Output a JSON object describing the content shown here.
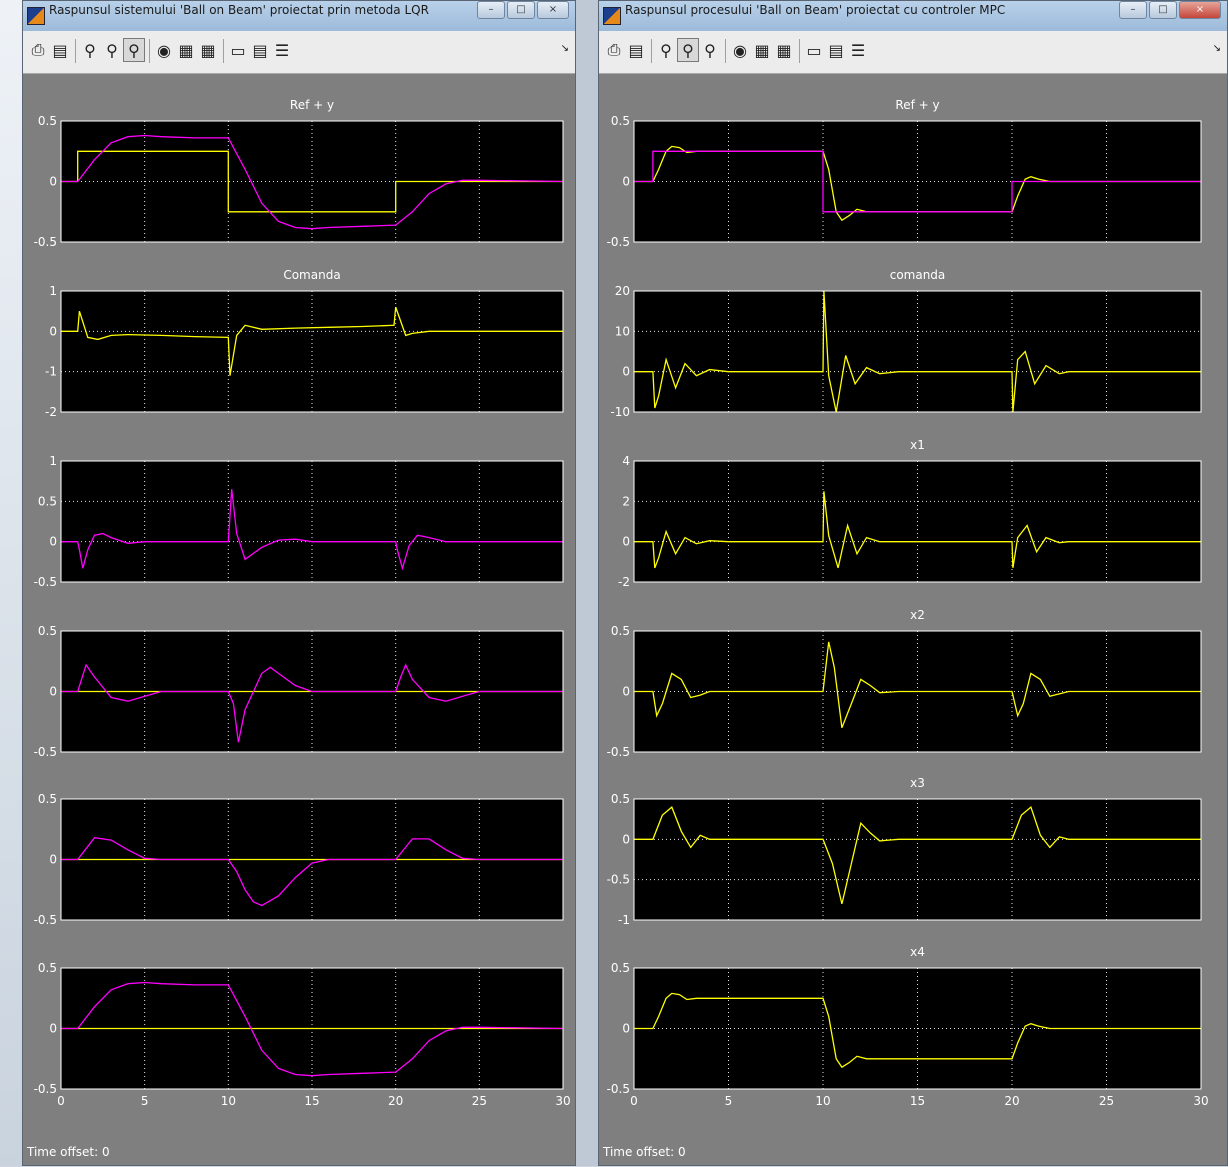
{
  "windows": [
    {
      "id": "lqr",
      "title": "Raspunsul sistemului 'Ball on Beam' proiectat prin metoda LQR",
      "time_offset_label": "Time offset:",
      "time_offset_value": "0",
      "toolbar_icons": [
        "print-icon",
        "params-icon",
        "zoom-in-icon",
        "zoom-x-icon",
        "zoom-y-icon",
        "binoculars-icon",
        "save-axes-icon",
        "restore-axes-icon",
        "floating-scope-icon",
        "lock-icon",
        "select-signals-icon"
      ],
      "xticks": [
        "0",
        "5",
        "10",
        "15",
        "20",
        "25",
        "30"
      ],
      "panels": [
        {
          "title": "Ref + y",
          "yticks": [
            "0.5",
            "0",
            "-0.5"
          ],
          "ylim": [
            -0.5,
            0.5
          ]
        },
        {
          "title": "Comanda",
          "yticks": [
            "1",
            "0",
            "-1",
            "-2"
          ],
          "ylim": [
            -2,
            1
          ]
        },
        {
          "title": "",
          "yticks": [
            "1",
            "0.5",
            "0",
            "-0.5"
          ],
          "ylim": [
            -0.5,
            1
          ]
        },
        {
          "title": "",
          "yticks": [
            "0.5",
            "0",
            "-0.5"
          ],
          "ylim": [
            -0.5,
            0.5
          ]
        },
        {
          "title": "",
          "yticks": [
            "0.5",
            "0",
            "-0.5"
          ],
          "ylim": [
            -0.5,
            0.5
          ]
        },
        {
          "title": "",
          "yticks": [
            "0.5",
            "0",
            "-0.5"
          ],
          "ylim": [
            -0.5,
            0.5
          ]
        }
      ]
    },
    {
      "id": "mpc",
      "title": "Raspunsul procesului 'Ball on Beam' proiectat cu controler MPC",
      "time_offset_label": "Time offset:",
      "time_offset_value": "0",
      "toolbar_icons": [
        "print-icon",
        "params-icon",
        "zoom-in-icon",
        "zoom-x-icon",
        "zoom-y-icon",
        "binoculars-icon",
        "save-axes-icon",
        "restore-axes-icon",
        "floating-scope-icon",
        "lock-icon",
        "select-signals-icon"
      ],
      "xticks": [
        "0",
        "5",
        "10",
        "15",
        "20",
        "25",
        "30"
      ],
      "panels": [
        {
          "title": "Ref + y",
          "yticks": [
            "0.5",
            "0",
            "-0.5"
          ],
          "ylim": [
            -0.5,
            0.5
          ]
        },
        {
          "title": "comanda",
          "yticks": [
            "20",
            "10",
            "0",
            "-10"
          ],
          "ylim": [
            -10,
            20
          ]
        },
        {
          "title": "x1",
          "yticks": [
            "4",
            "2",
            "0",
            "-2"
          ],
          "ylim": [
            -2,
            4
          ]
        },
        {
          "title": "x2",
          "yticks": [
            "0.5",
            "0",
            "-0.5"
          ],
          "ylim": [
            -0.5,
            0.5
          ]
        },
        {
          "title": "x3",
          "yticks": [
            "0.5",
            "0",
            "-0.5",
            "-1"
          ],
          "ylim": [
            -1,
            0.5
          ]
        },
        {
          "title": "x4",
          "yticks": [
            "0.5",
            "0",
            "-0.5"
          ],
          "ylim": [
            -0.5,
            0.5
          ]
        }
      ]
    }
  ],
  "colors": {
    "yellow": "#ffff00",
    "magenta": "#ff00ff",
    "orange": "#ff9a5a",
    "axes_bg": "#000000",
    "figure_bg": "#7f7f7f"
  },
  "chart_data": [
    {
      "type": "line",
      "window": "lqr",
      "title": "Ref + y",
      "xlim": [
        0,
        30
      ],
      "ylim": [
        -0.5,
        0.5
      ],
      "grid": true,
      "series": [
        {
          "color": "yellow",
          "x": [
            0,
            1,
            1,
            10,
            10,
            20,
            20,
            30
          ],
          "y": [
            0,
            0,
            0.25,
            0.25,
            -0.25,
            -0.25,
            0,
            0
          ]
        },
        {
          "color": "magenta",
          "x": [
            0,
            1,
            2,
            3,
            4,
            5,
            6,
            8,
            10,
            11,
            12,
            13,
            14,
            15,
            16,
            18,
            20,
            21,
            22,
            23,
            24,
            25,
            30
          ],
          "y": [
            0,
            0,
            0.18,
            0.32,
            0.37,
            0.38,
            0.37,
            0.36,
            0.36,
            0.1,
            -0.18,
            -0.33,
            -0.38,
            -0.39,
            -0.38,
            -0.37,
            -0.36,
            -0.25,
            -0.1,
            -0.02,
            0.01,
            0.01,
            0
          ]
        }
      ]
    },
    {
      "type": "line",
      "window": "lqr",
      "title": "Comanda",
      "xlim": [
        0,
        30
      ],
      "ylim": [
        -2,
        1
      ],
      "grid": true,
      "series": [
        {
          "color": "yellow",
          "x": [
            0,
            1,
            1.1,
            1.6,
            2.2,
            3,
            4,
            6,
            8,
            10,
            10.1,
            10.5,
            11,
            12,
            14,
            16,
            18,
            19.9,
            20,
            20.6,
            21,
            22,
            25,
            30
          ],
          "y": [
            0,
            0,
            0.5,
            -0.15,
            -0.2,
            -0.1,
            -0.08,
            -0.1,
            -0.13,
            -0.15,
            -1.1,
            -0.1,
            0.15,
            0.05,
            0.08,
            0.1,
            0.12,
            0.15,
            0.6,
            -0.1,
            -0.05,
            0,
            0,
            0
          ]
        }
      ]
    },
    {
      "type": "line",
      "window": "lqr",
      "title": "",
      "xlim": [
        0,
        30
      ],
      "ylim": [
        -0.5,
        1
      ],
      "grid": true,
      "series": [
        {
          "color": "magenta",
          "x": [
            0,
            1,
            1.1,
            1.3,
            1.6,
            2,
            2.5,
            3,
            4,
            5,
            10,
            10.2,
            10.5,
            11,
            12,
            13,
            14,
            15,
            20,
            20.1,
            20.4,
            20.8,
            21.3,
            22,
            23,
            30
          ],
          "y": [
            0,
            0,
            -0.1,
            -0.33,
            -0.1,
            0.08,
            0.1,
            0.05,
            -0.02,
            0,
            0,
            0.65,
            0.1,
            -0.22,
            -0.07,
            0.02,
            0.03,
            0,
            0,
            -0.1,
            -0.33,
            -0.05,
            0.08,
            0.05,
            0,
            0
          ]
        }
      ]
    },
    {
      "type": "line",
      "window": "lqr",
      "title": "",
      "xlim": [
        0,
        30
      ],
      "ylim": [
        -0.5,
        0.5
      ],
      "grid": true,
      "series": [
        {
          "color": "yellow",
          "x": [
            0,
            30
          ],
          "y": [
            0,
            0
          ]
        },
        {
          "color": "magenta",
          "x": [
            0,
            1,
            1.5,
            2,
            3,
            4,
            5,
            6,
            10,
            10.3,
            10.6,
            11,
            12,
            12.5,
            13,
            14,
            15,
            20,
            20.3,
            20.6,
            21,
            22,
            23,
            24,
            25,
            30
          ],
          "y": [
            0,
            0,
            0.22,
            0.12,
            -0.05,
            -0.08,
            -0.04,
            0,
            0,
            -0.1,
            -0.42,
            -0.15,
            0.15,
            0.2,
            0.15,
            0.05,
            0,
            0,
            0.12,
            0.22,
            0.1,
            -0.05,
            -0.08,
            -0.04,
            0,
            0
          ]
        }
      ]
    },
    {
      "type": "line",
      "window": "lqr",
      "title": "",
      "xlim": [
        0,
        30
      ],
      "ylim": [
        -0.5,
        0.5
      ],
      "grid": true,
      "series": [
        {
          "color": "yellow",
          "x": [
            0,
            30
          ],
          "y": [
            0,
            0
          ]
        },
        {
          "color": "magenta",
          "x": [
            0,
            1,
            2,
            3,
            4,
            5,
            6,
            10,
            10.5,
            11,
            11.5,
            12,
            13,
            14,
            15,
            16,
            20,
            21,
            22,
            23,
            24,
            25,
            30
          ],
          "y": [
            0,
            0,
            0.18,
            0.16,
            0.08,
            0.01,
            0,
            0,
            -0.1,
            -0.25,
            -0.35,
            -0.38,
            -0.3,
            -0.15,
            -0.03,
            0,
            0,
            0.17,
            0.17,
            0.08,
            0.01,
            0,
            0
          ]
        }
      ]
    },
    {
      "type": "line",
      "window": "lqr",
      "title": "",
      "xlim": [
        0,
        30
      ],
      "ylim": [
        -0.5,
        0.5
      ],
      "grid": true,
      "series": [
        {
          "color": "yellow",
          "x": [
            0,
            30
          ],
          "y": [
            0,
            0
          ]
        },
        {
          "color": "magenta",
          "x": [
            0,
            1,
            2,
            3,
            4,
            5,
            6,
            8,
            10,
            11,
            12,
            13,
            14,
            15,
            16,
            18,
            20,
            21,
            22,
            23,
            24,
            25,
            30
          ],
          "y": [
            0,
            0,
            0.18,
            0.32,
            0.37,
            0.38,
            0.37,
            0.36,
            0.36,
            0.1,
            -0.18,
            -0.33,
            -0.38,
            -0.39,
            -0.38,
            -0.37,
            -0.36,
            -0.25,
            -0.1,
            -0.02,
            0.01,
            0.01,
            0
          ]
        }
      ]
    },
    {
      "type": "line",
      "window": "mpc",
      "title": "Ref + y",
      "xlim": [
        0,
        30
      ],
      "ylim": [
        -0.5,
        0.5
      ],
      "grid": true,
      "series": [
        {
          "color": "yellow",
          "x": [
            0,
            1,
            1.3,
            1.7,
            2,
            2.4,
            2.8,
            3.3,
            4,
            6,
            10,
            10.3,
            10.7,
            11,
            11.4,
            11.8,
            12.3,
            13,
            14,
            16,
            20,
            20.3,
            20.7,
            21,
            21.4,
            22,
            23,
            30
          ],
          "y": [
            0,
            0,
            0.1,
            0.25,
            0.29,
            0.28,
            0.24,
            0.25,
            0.25,
            0.25,
            0.25,
            0.1,
            -0.25,
            -0.32,
            -0.28,
            -0.23,
            -0.25,
            -0.25,
            -0.25,
            -0.25,
            -0.25,
            -0.12,
            0.02,
            0.04,
            0.02,
            0,
            0,
            0
          ]
        },
        {
          "color": "magenta",
          "x": [
            0,
            1,
            1,
            10,
            10,
            20,
            20,
            30
          ],
          "y": [
            0,
            0,
            0.25,
            0.25,
            -0.25,
            -0.25,
            0,
            0
          ]
        }
      ]
    },
    {
      "type": "line",
      "window": "mpc",
      "title": "comanda",
      "xlim": [
        0,
        30
      ],
      "ylim": [
        -10,
        20
      ],
      "grid": true,
      "series": [
        {
          "color": "yellow",
          "x": [
            0,
            1,
            1.1,
            1.3,
            1.7,
            2.2,
            2.7,
            3.3,
            4,
            5,
            10,
            10.05,
            10.3,
            10.7,
            11.2,
            11.7,
            12.3,
            13,
            14,
            20,
            20.05,
            20.3,
            20.7,
            21.2,
            21.8,
            22.5,
            23,
            30
          ],
          "y": [
            0,
            0,
            -9,
            -6,
            3,
            -4,
            2,
            -1,
            0.5,
            0,
            0,
            20,
            -1,
            -10,
            4,
            -3,
            1,
            -0.5,
            0,
            0,
            -10,
            3,
            5,
            -3,
            1.5,
            -0.5,
            0,
            0
          ]
        }
      ]
    },
    {
      "type": "line",
      "window": "mpc",
      "title": "x1",
      "xlim": [
        0,
        30
      ],
      "ylim": [
        -2,
        4
      ],
      "grid": true,
      "series": [
        {
          "color": "yellow",
          "x": [
            0,
            1,
            1.1,
            1.3,
            1.7,
            2.2,
            2.7,
            3.3,
            4,
            5,
            10,
            10.05,
            10.3,
            10.8,
            11.3,
            11.8,
            12.3,
            13,
            20,
            20.05,
            20.3,
            20.8,
            21.3,
            21.8,
            22.5,
            23,
            30
          ],
          "y": [
            0,
            0,
            -1.3,
            -0.8,
            0.5,
            -0.6,
            0.2,
            -0.1,
            0.05,
            0,
            0,
            2.5,
            0.3,
            -1.3,
            0.8,
            -0.6,
            0.2,
            0,
            0,
            -1.3,
            0.2,
            0.8,
            -0.5,
            0.2,
            -0.05,
            0,
            0
          ]
        }
      ]
    },
    {
      "type": "line",
      "window": "mpc",
      "title": "x2",
      "xlim": [
        0,
        30
      ],
      "ylim": [
        -0.5,
        0.5
      ],
      "grid": true,
      "series": [
        {
          "color": "yellow",
          "x": [
            0,
            1,
            1.2,
            1.5,
            2,
            2.5,
            3,
            3.5,
            4,
            5,
            10,
            10.3,
            10.6,
            11,
            11.5,
            12,
            12.5,
            13,
            14,
            20,
            20.3,
            20.6,
            21,
            21.5,
            22,
            22.5,
            23,
            30
          ],
          "y": [
            0,
            0,
            -0.2,
            -0.1,
            0.15,
            0.1,
            -0.05,
            -0.03,
            0,
            0,
            0,
            0.41,
            0.2,
            -0.3,
            -0.1,
            0.1,
            0.05,
            -0.01,
            0,
            0,
            -0.2,
            -0.1,
            0.15,
            0.1,
            -0.04,
            -0.02,
            0,
            0
          ]
        }
      ]
    },
    {
      "type": "line",
      "window": "mpc",
      "title": "x3",
      "xlim": [
        0,
        30
      ],
      "ylim": [
        -1,
        0.5
      ],
      "grid": true,
      "series": [
        {
          "color": "yellow",
          "x": [
            0,
            1,
            1.5,
            2,
            2.5,
            3,
            3.5,
            4,
            5,
            10,
            10.5,
            11,
            11.5,
            12,
            12.5,
            13,
            14,
            20,
            20.5,
            21,
            21.5,
            22,
            22.5,
            23,
            30
          ],
          "y": [
            0,
            0,
            0.3,
            0.4,
            0.1,
            -0.1,
            0.05,
            0,
            0,
            0,
            -0.3,
            -0.8,
            -0.3,
            0.2,
            0.08,
            -0.02,
            0,
            0,
            0.3,
            0.4,
            0.05,
            -0.1,
            0.03,
            0,
            0
          ]
        }
      ]
    },
    {
      "type": "line",
      "window": "mpc",
      "title": "x4",
      "xlim": [
        0,
        30
      ],
      "ylim": [
        -0.5,
        0.5
      ],
      "grid": true,
      "series": [
        {
          "color": "yellow",
          "x": [
            0,
            1,
            1.3,
            1.7,
            2,
            2.4,
            2.8,
            3.3,
            4,
            6,
            10,
            10.3,
            10.7,
            11,
            11.4,
            11.8,
            12.3,
            13,
            14,
            16,
            20,
            20.3,
            20.7,
            21,
            21.4,
            22,
            23,
            30
          ],
          "y": [
            0,
            0,
            0.1,
            0.25,
            0.29,
            0.28,
            0.24,
            0.25,
            0.25,
            0.25,
            0.25,
            0.1,
            -0.25,
            -0.32,
            -0.28,
            -0.23,
            -0.25,
            -0.25,
            -0.25,
            -0.25,
            -0.25,
            -0.12,
            0.02,
            0.04,
            0.02,
            0,
            0,
            0
          ]
        }
      ]
    }
  ]
}
